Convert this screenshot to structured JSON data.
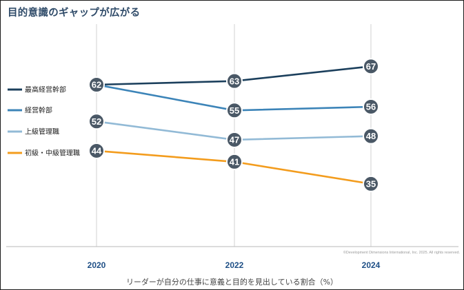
{
  "chart_data": {
    "type": "line",
    "title": "目的意識のギャップが広がる",
    "xlabel": "リーダーが自分の仕事に意義と目的を見出している割合（%）",
    "ylabel": "",
    "x": [
      "2020",
      "2022",
      "2024"
    ],
    "grid": "vertical lines at each year",
    "legend_position": "left",
    "series": [
      {
        "name": "最高経営幹部",
        "values": [
          62,
          63,
          67
        ],
        "color": "#1b3f5c"
      },
      {
        "name": "経営幹部",
        "values": [
          62,
          55,
          56
        ],
        "color": "#3c84b8"
      },
      {
        "name": "上級管理職",
        "values": [
          52,
          47,
          48
        ],
        "color": "#92bad6"
      },
      {
        "name": "初級・中級管理職",
        "values": [
          44,
          41,
          35
        ],
        "color": "#f39c1d"
      }
    ],
    "marker_labels": [
      {
        "x": "2020",
        "value": 62
      },
      {
        "x": "2020",
        "value": 52
      },
      {
        "x": "2020",
        "value": 44
      },
      {
        "x": "2022",
        "value": 63
      },
      {
        "x": "2022",
        "value": 55
      },
      {
        "x": "2022",
        "value": 47
      },
      {
        "x": "2022",
        "value": 41
      },
      {
        "x": "2024",
        "value": 67
      },
      {
        "x": "2024",
        "value": 56
      },
      {
        "x": "2024",
        "value": 48
      },
      {
        "x": "2024",
        "value": 35
      }
    ],
    "marker_color": "#4a5866",
    "credit": "©Development Dimensions International, Inc. 2025. All rights reserved."
  }
}
